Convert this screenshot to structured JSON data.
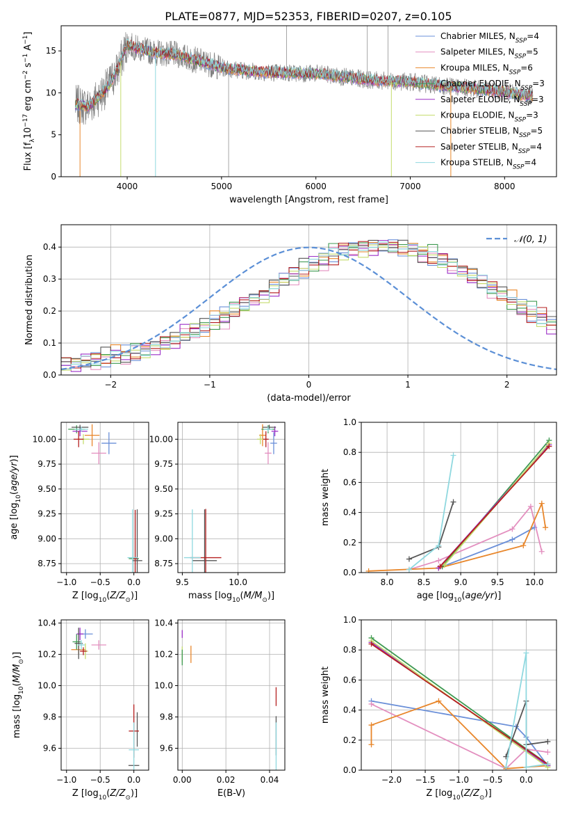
{
  "figure_title": "PLATE=0877, MJD=52353, FIBERID=0207, z=0.105",
  "model_colors": [
    "#6a8fd8",
    "#e38fbf",
    "#e8862a",
    "#3e9a52",
    "#9b2fc7",
    "#c5dc6e",
    "#555555",
    "#b52020",
    "#8fd8df"
  ],
  "chart_data": [
    {
      "type": "line",
      "title": "PLATE=0877, MJD=52353, FIBERID=0207, z=0.105",
      "xlabel": "wavelength [Angstrom, rest frame]",
      "ylabel": "Flux [f_λ 10^-17 erg cm^-2 s^-1 A^-1]",
      "xlim": [
        3300,
        8550
      ],
      "ylim": [
        0,
        18
      ],
      "x_ticks": [
        4000,
        5000,
        6000,
        7000,
        8000
      ],
      "y_ticks": [
        0,
        5,
        10,
        15
      ],
      "legend_position": "top-right",
      "grid": false,
      "series": [
        {
          "name": "Chabrier MILES, N_SSP=4",
          "label_main": "Chabrier MILES, N",
          "label_sub": "SSP",
          "label_tail": "=4",
          "color": "#6a8fd8"
        },
        {
          "name": "Salpeter MILES, N_SSP=5",
          "label_main": "Salpeter MILES, N",
          "label_sub": "SSP",
          "label_tail": "=5",
          "color": "#e38fbf"
        },
        {
          "name": "Kroupa MILES, N_SSP=6",
          "label_main": "Kroupa MILES, N",
          "label_sub": "SSP",
          "label_tail": "=6",
          "color": "#e8862a"
        },
        {
          "name": "Chabrier ELODIE, N_SSP=3",
          "label_main": "Chabrier ELODIE, N",
          "label_sub": "SSP",
          "label_tail": "=3",
          "color": "#3e9a52"
        },
        {
          "name": "Salpeter ELODIE, N_SSP=3",
          "label_main": "Salpeter ELODIE, N",
          "label_sub": "SSP",
          "label_tail": "=3",
          "color": "#9b2fc7"
        },
        {
          "name": "Kroupa ELODIE, N_SSP=3",
          "label_main": "Kroupa ELODIE, N",
          "label_sub": "SSP",
          "label_tail": "=3",
          "color": "#c5dc6e"
        },
        {
          "name": "Chabrier STELIB, N_SSP=5",
          "label_main": "Chabrier STELIB, N",
          "label_sub": "SSP",
          "label_tail": "=5",
          "color": "#555555"
        },
        {
          "name": "Salpeter STELIB, N_SSP=4",
          "label_main": "Salpeter STELIB, N",
          "label_sub": "SSP",
          "label_tail": "=4",
          "color": "#b52020"
        },
        {
          "name": "Kroupa STELIB, N_SSP=4",
          "label_main": "Kroupa STELIB, N",
          "label_sub": "SSP",
          "label_tail": "=4",
          "color": "#8fd8df"
        }
      ],
      "model_continuum": {
        "x": [
          3450,
          3600,
          3700,
          3800,
          3900,
          4000,
          4100,
          4300,
          4500,
          4800,
          5000,
          5300,
          5600,
          6000,
          6300,
          6600,
          7000,
          7300,
          7600,
          8000,
          8300
        ],
        "y": [
          8.6,
          8.4,
          9.6,
          10.8,
          12.8,
          15.8,
          15.3,
          14.8,
          14.6,
          13.7,
          13.0,
          12.6,
          12.4,
          12.3,
          11.9,
          11.5,
          11.3,
          10.9,
          10.6,
          10.1,
          9.6
        ]
      },
      "observed_range": [
        3450,
        8300
      ],
      "absorption_lines": [
        {
          "x": 3500,
          "depth": 0.0,
          "color": "#e8862a"
        },
        {
          "x": 3932,
          "depth": 0.0,
          "color": "#c5dc6e"
        },
        {
          "x": 4300,
          "depth": 0.0,
          "color": "#8fd8df"
        },
        {
          "x": 6800,
          "depth": 0.0,
          "color": "#c5dc6e"
        },
        {
          "x": 7430,
          "depth": 0.0,
          "color": "#e8862a"
        }
      ],
      "emission_spikes": [
        {
          "x": 5075,
          "y": 0.0
        },
        {
          "x": 5690,
          "y": 18.0
        },
        {
          "x": 6545,
          "y": 18.0
        },
        {
          "x": 6765,
          "y": 18.0
        }
      ]
    },
    {
      "type": "bar",
      "xlabel": "(data-model)/error",
      "ylabel": "Normed distribution",
      "xlim": [
        -2.5,
        2.5
      ],
      "ylim": [
        0,
        0.47
      ],
      "x_ticks": [
        -2,
        -1,
        0,
        1,
        2
      ],
      "y_ticks": [
        0.0,
        0.1,
        0.2,
        0.3,
        0.4
      ],
      "grid": true,
      "legend_position": "top-right",
      "reference_curve": {
        "name": "N(0,1)",
        "label": "𝒩(0, 1)",
        "mean": 0,
        "sigma": 1,
        "color": "#5b8fd6"
      },
      "bin_width": 0.1,
      "bin_edges_start": -2.5,
      "base_heights": [
        0.03,
        0.034,
        0.038,
        0.043,
        0.048,
        0.054,
        0.061,
        0.068,
        0.075,
        0.083,
        0.094,
        0.106,
        0.118,
        0.133,
        0.148,
        0.164,
        0.18,
        0.197,
        0.215,
        0.232,
        0.25,
        0.27,
        0.29,
        0.309,
        0.327,
        0.344,
        0.359,
        0.372,
        0.382,
        0.391,
        0.396,
        0.399,
        0.4,
        0.398,
        0.394,
        0.387,
        0.378,
        0.367,
        0.354,
        0.34,
        0.323,
        0.305,
        0.286,
        0.267,
        0.247,
        0.228,
        0.209,
        0.19,
        0.172,
        0.156,
        0.141,
        0.126,
        0.113,
        0.1,
        0.088,
        0.078,
        0.069,
        0.061,
        0.053,
        0.047,
        0.041,
        0.037,
        0.034,
        0.031,
        0.029,
        0.028,
        0.027,
        0.026,
        0.026,
        0.025
      ],
      "series_offsets": [
        [
          0.0,
          0.01,
          -0.01,
          0.02,
          -0.02,
          0.01,
          0.03,
          -0.02,
          0.0,
          0.02
        ],
        [
          0.01,
          -0.01,
          0.02,
          -0.02,
          0.01,
          0.0,
          -0.03,
          0.02,
          0.01,
          -0.01
        ],
        [
          -0.01,
          0.02,
          0.0,
          0.01,
          -0.02,
          0.03,
          0.01,
          -0.01,
          0.02,
          0.0
        ],
        [
          0.02,
          0.0,
          0.01,
          -0.01,
          0.02,
          -0.02,
          0.0,
          0.03,
          -0.01,
          0.01
        ],
        [
          0.0,
          -0.02,
          0.03,
          0.01,
          0.0,
          0.02,
          -0.01,
          0.0,
          0.02,
          -0.02
        ],
        [
          -0.02,
          0.01,
          0.0,
          0.02,
          0.01,
          -0.01,
          0.02,
          0.01,
          -0.02,
          0.01
        ],
        [
          0.01,
          0.02,
          -0.01,
          0.0,
          0.03,
          0.01,
          -0.02,
          0.0,
          0.01,
          0.02
        ],
        [
          0.02,
          -0.01,
          0.01,
          0.02,
          -0.01,
          0.0,
          0.01,
          -0.02,
          0.03,
          0.0
        ],
        [
          -0.01,
          0.0,
          0.02,
          -0.01,
          0.0,
          0.02,
          0.01,
          0.02,
          -0.01,
          0.01
        ]
      ]
    },
    {
      "type": "scatter",
      "name": "age_vs_Z",
      "xlabel": "Z [log10(Z/Z⊙)]",
      "ylabel": "age [log10(age/yr)]",
      "xlim": [
        -1.08,
        0.22
      ],
      "ylim": [
        8.66,
        10.17
      ],
      "x_ticks": [
        -1.0,
        -0.5,
        0.0
      ],
      "y_ticks": [
        8.75,
        9.0,
        9.25,
        9.5,
        9.75,
        10.0
      ],
      "grid": true,
      "points": [
        {
          "c": 0,
          "x": -0.37,
          "y": 9.96,
          "xerr": 0.22,
          "yerr": 0.22
        },
        {
          "c": 1,
          "x": -0.52,
          "y": 9.86,
          "xerr": 0.22,
          "yerr": 0.22
        },
        {
          "c": 2,
          "x": -0.62,
          "y": 10.04,
          "xerr": 0.22,
          "yerr": 0.22
        },
        {
          "c": 3,
          "x": -0.85,
          "y": 10.1,
          "xerr": 0.25,
          "yerr": 0.08
        },
        {
          "c": 4,
          "x": -0.8,
          "y": 10.08,
          "xerr": 0.22,
          "yerr": 0.1
        },
        {
          "c": 5,
          "x": -0.75,
          "y": 10.0,
          "xerr": 0.18,
          "yerr": 0.1
        },
        {
          "c": 6,
          "x": -0.8,
          "y": 10.12,
          "xerr": 0.25,
          "yerr": 0.05
        },
        {
          "c": 7,
          "x": -0.82,
          "y": 10.0,
          "xerr": 0.15,
          "yerr": 0.16
        },
        {
          "c": 8,
          "x": -0.78,
          "y": 10.1,
          "xerr": 0.2,
          "yerr": 0.05
        },
        {
          "c": 3,
          "x": 0.0,
          "y": 8.8,
          "xerr": 0.15,
          "yerr": 0.0
        },
        {
          "c": 6,
          "x": 0.05,
          "y": 8.78,
          "xerr": 0.15,
          "yerr": 1.03
        },
        {
          "c": 7,
          "x": 0.02,
          "y": 8.8,
          "xerr": 0.05,
          "yerr": 0.98
        },
        {
          "c": 8,
          "x": -0.02,
          "y": 8.81,
          "xerr": 0.15,
          "yerr": 0.97
        }
      ]
    },
    {
      "type": "scatter",
      "name": "age_vs_mass",
      "xlabel": "mass [log10(M/M⊙)]",
      "ylabel": "",
      "xlim": [
        9.46,
        10.42
      ],
      "ylim": [
        8.66,
        10.17
      ],
      "x_ticks": [
        9.5,
        10.0
      ],
      "y_ticks": [
        8.75,
        9.0,
        9.25,
        9.5,
        9.75,
        10.0
      ],
      "grid": true,
      "points": [
        {
          "c": 0,
          "x": 10.32,
          "y": 9.96,
          "xerr": 0.06,
          "yerr": 0.22
        },
        {
          "c": 1,
          "x": 10.27,
          "y": 9.86,
          "xerr": 0.06,
          "yerr": 0.22
        },
        {
          "c": 2,
          "x": 10.22,
          "y": 10.04,
          "xerr": 0.06,
          "yerr": 0.22
        },
        {
          "c": 3,
          "x": 10.27,
          "y": 10.1,
          "xerr": 0.12,
          "yerr": 0.08
        },
        {
          "c": 4,
          "x": 10.33,
          "y": 10.08,
          "xerr": 0.06,
          "yerr": 0.1
        },
        {
          "c": 5,
          "x": 10.2,
          "y": 10.0,
          "xerr": 0.06,
          "yerr": 0.1
        },
        {
          "c": 6,
          "x": 10.28,
          "y": 10.12,
          "xerr": 0.12,
          "yerr": 0.05
        },
        {
          "c": 7,
          "x": 10.25,
          "y": 10.0,
          "xerr": 0.05,
          "yerr": 0.16
        },
        {
          "c": 8,
          "x": 10.27,
          "y": 10.1,
          "xerr": 0.08,
          "yerr": 0.05
        },
        {
          "c": 6,
          "x": 9.7,
          "y": 8.78,
          "xerr": 0.22,
          "yerr": 1.03
        },
        {
          "c": 7,
          "x": 9.71,
          "y": 8.81,
          "xerr": 0.28,
          "yerr": 0.98
        },
        {
          "c": 8,
          "x": 9.59,
          "y": 8.81,
          "xerr": 0.15,
          "yerr": 0.97
        }
      ]
    },
    {
      "type": "line",
      "name": "mass_weight_vs_age",
      "xlabel": "age [log10(age/yr)]",
      "ylabel": "mass weight",
      "xlim": [
        7.65,
        10.3
      ],
      "ylim": [
        0,
        1.0
      ],
      "x_ticks": [
        8.0,
        8.5,
        9.0,
        9.5,
        10.0
      ],
      "y_ticks": [
        0.0,
        0.2,
        0.4,
        0.6,
        0.8,
        1.0
      ],
      "grid": true,
      "series": [
        {
          "c": 0,
          "x": [
            8.7,
            9.7,
            10.0
          ],
          "y": [
            0.03,
            0.22,
            0.3
          ]
        },
        {
          "c": 1,
          "x": [
            8.3,
            8.7,
            9.7,
            9.95,
            10.1
          ],
          "y": [
            0.02,
            0.08,
            0.29,
            0.44,
            0.14
          ]
        },
        {
          "c": 2,
          "x": [
            7.75,
            8.7,
            9.85,
            10.1,
            10.15
          ],
          "y": [
            0.01,
            0.03,
            0.18,
            0.46,
            0.3
          ]
        },
        {
          "c": 3,
          "x": [
            8.75,
            10.2
          ],
          "y": [
            0.04,
            0.88
          ]
        },
        {
          "c": 4,
          "x": [
            8.7,
            10.2
          ],
          "y": [
            0.03,
            0.85
          ]
        },
        {
          "c": 5,
          "x": [
            8.78,
            10.2
          ],
          "y": [
            0.05,
            0.86
          ]
        },
        {
          "c": 6,
          "x": [
            8.3,
            8.7,
            8.9
          ],
          "y": [
            0.09,
            0.17,
            0.47
          ]
        },
        {
          "c": 7,
          "x": [
            8.72,
            10.2
          ],
          "y": [
            0.04,
            0.84
          ]
        },
        {
          "c": 8,
          "x": [
            8.3,
            8.7,
            8.9
          ],
          "y": [
            0.02,
            0.18,
            0.78
          ]
        }
      ]
    },
    {
      "type": "scatter",
      "name": "mass_vs_Z",
      "xlabel": "Z [log10(Z/Z⊙)]",
      "ylabel": "mass [log10(M/M⊙)]",
      "xlim": [
        -1.08,
        0.22
      ],
      "ylim": [
        9.46,
        10.42
      ],
      "x_ticks": [
        -1.0,
        -0.5,
        0.0
      ],
      "y_ticks": [
        9.6,
        9.8,
        10.0,
        10.2,
        10.4
      ],
      "grid": true,
      "points": [
        {
          "c": 0,
          "x": -0.72,
          "y": 10.33,
          "xerr": 0.22,
          "yerr": 0.06
        },
        {
          "c": 1,
          "x": -0.52,
          "y": 10.26,
          "xerr": 0.22,
          "yerr": 0.06
        },
        {
          "c": 2,
          "x": -0.82,
          "y": 10.23,
          "xerr": 0.22,
          "yerr": 0.06
        },
        {
          "c": 3,
          "x": -0.85,
          "y": 10.28,
          "xerr": 0.12,
          "yerr": 0.1
        },
        {
          "c": 4,
          "x": -0.8,
          "y": 10.33,
          "xerr": 0.1,
          "yerr": 0.08
        },
        {
          "c": 5,
          "x": -0.72,
          "y": 10.22,
          "xerr": 0.08,
          "yerr": 0.1
        },
        {
          "c": 6,
          "x": -0.82,
          "y": 10.27,
          "xerr": 0.12,
          "yerr": 0.2
        },
        {
          "c": 7,
          "x": -0.75,
          "y": 10.22,
          "xerr": 0.1,
          "yerr": 0.05
        },
        {
          "c": 8,
          "x": -0.78,
          "y": 10.26,
          "xerr": 0.1,
          "yerr": 0.06
        },
        {
          "c": 6,
          "x": 0.0,
          "y": 9.49,
          "xerr": 0.16,
          "yerr": 0.0
        },
        {
          "c": 6,
          "x": 0.05,
          "y": 9.72,
          "xerr": 0.0,
          "yerr": 0.22
        },
        {
          "c": 7,
          "x": 0.0,
          "y": 9.71,
          "xerr": 0.15,
          "yerr": 0.34
        },
        {
          "c": 8,
          "x": 0.0,
          "y": 9.59,
          "xerr": 0.15,
          "yerr": 0.35
        }
      ]
    },
    {
      "type": "scatter",
      "name": "mass_vs_EBV",
      "xlabel": "E(B-V)",
      "ylabel": "",
      "xlim": [
        -0.002,
        0.047
      ],
      "ylim": [
        9.46,
        10.42
      ],
      "x_ticks": [
        0.0,
        0.02,
        0.04
      ],
      "y_ticks": [
        9.6,
        9.8,
        10.0,
        10.2,
        10.4
      ],
      "grid": true,
      "points": [
        {
          "c": 4,
          "x": 0.0,
          "y": 10.33,
          "xerr": 0.0,
          "yerr": 0.05
        },
        {
          "c": 5,
          "x": 0.0,
          "y": 10.2,
          "xerr": 0.0,
          "yerr": 0.1
        },
        {
          "c": 3,
          "x": 0.0,
          "y": 10.18,
          "xerr": 0.0,
          "yerr": 0.1
        },
        {
          "c": 2,
          "x": 0.004,
          "y": 10.2,
          "xerr": 0.0,
          "yerr": 0.11
        },
        {
          "c": 7,
          "x": 0.043,
          "y": 9.93,
          "xerr": 0.0,
          "yerr": 0.12
        },
        {
          "c": 6,
          "x": 0.043,
          "y": 9.68,
          "xerr": 0.0,
          "yerr": 0.25
        },
        {
          "c": 8,
          "x": 0.043,
          "y": 9.6,
          "xerr": 0.0,
          "yerr": 0.33
        }
      ]
    },
    {
      "type": "line",
      "name": "mass_weight_vs_Z",
      "xlabel": "Z [log10(Z/Z⊙)]",
      "ylabel": "mass weight",
      "xlim": [
        -2.45,
        0.45
      ],
      "ylim": [
        0,
        1.0
      ],
      "x_ticks": [
        -2.0,
        -1.5,
        -1.0,
        -0.5,
        0.0
      ],
      "y_ticks": [
        0.0,
        0.2,
        0.4,
        0.6,
        0.8,
        1.0
      ],
      "grid": true,
      "series": [
        {
          "c": 0,
          "x": [
            -2.3,
            -0.15,
            0.0,
            0.32
          ],
          "y": [
            0.46,
            0.29,
            0.22,
            0.03
          ]
        },
        {
          "c": 1,
          "x": [
            -2.3,
            -0.3,
            0.0,
            0.32
          ],
          "y": [
            0.44,
            0.01,
            0.14,
            0.12
          ]
        },
        {
          "c": 2,
          "x": [
            -2.3,
            -2.3,
            -1.3,
            -0.3,
            0.32
          ],
          "y": [
            0.17,
            0.3,
            0.46,
            0.01,
            0.03
          ]
        },
        {
          "c": 3,
          "x": [
            -2.3,
            0.32
          ],
          "y": [
            0.88,
            0.04
          ]
        },
        {
          "c": 4,
          "x": [
            -2.3,
            0.32
          ],
          "y": [
            0.85,
            0.03
          ]
        },
        {
          "c": 5,
          "x": [
            -2.3,
            0.32
          ],
          "y": [
            0.86,
            0.02
          ]
        },
        {
          "c": 6,
          "x": [
            -0.3,
            0.0,
            0.0,
            0.32
          ],
          "y": [
            0.09,
            0.46,
            0.17,
            0.19
          ]
        },
        {
          "c": 7,
          "x": [
            -2.3,
            0.32
          ],
          "y": [
            0.84,
            0.04
          ]
        },
        {
          "c": 8,
          "x": [
            -0.3,
            0.0,
            0.0,
            0.32
          ],
          "y": [
            0.02,
            0.78,
            0.02,
            0.04
          ]
        }
      ]
    }
  ]
}
